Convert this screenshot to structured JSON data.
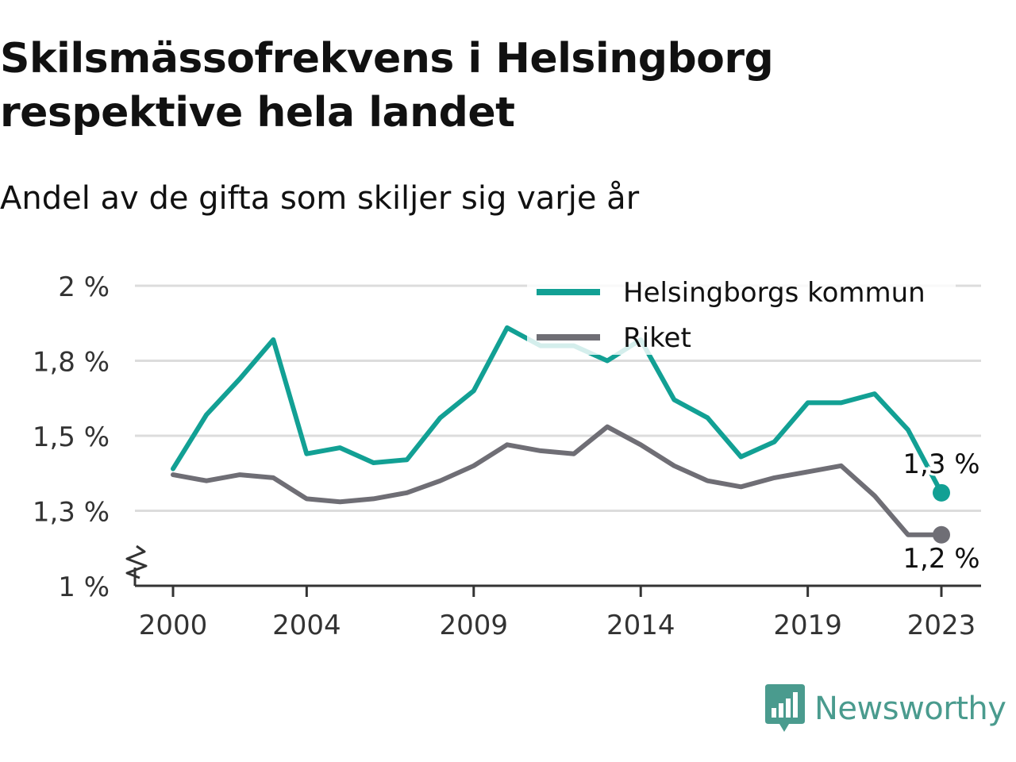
{
  "title": "Skilsmässofrekvens i Helsingborg respektive hela landet",
  "subtitle": "Andel av de gifta som skiljer sig varje år",
  "brand": {
    "name": "Newsworthy",
    "color": "#4a9b8e"
  },
  "chart_data": {
    "type": "line",
    "title": "Skilsmässofrekvens i Helsingborg respektive hela landet",
    "subtitle": "Andel av de gifta som skiljer sig varje år",
    "x": [
      2000,
      2001,
      2002,
      2003,
      2004,
      2005,
      2006,
      2007,
      2008,
      2009,
      2010,
      2011,
      2012,
      2013,
      2014,
      2015,
      2016,
      2017,
      2018,
      2019,
      2020,
      2021,
      2022,
      2023
    ],
    "x_ticks": [
      "2000",
      "2004",
      "2009",
      "2014",
      "2019",
      "2023"
    ],
    "x_tick_values": [
      2000,
      2004,
      2009,
      2014,
      2019,
      2023
    ],
    "y_ticks": [
      "1 %",
      "1,3 %",
      "1,5 %",
      "1,8 %",
      "2 %"
    ],
    "y_tick_values": [
      1.0,
      1.25,
      1.5,
      1.75,
      2.0
    ],
    "ylim": [
      1.0,
      2.0
    ],
    "y_axis_break": true,
    "grid": true,
    "legend_position": "top-right",
    "series": [
      {
        "name": "Helsingborgs kommun",
        "color": "#12a094",
        "values": [
          1.39,
          1.57,
          1.69,
          1.82,
          1.44,
          1.46,
          1.41,
          1.42,
          1.56,
          1.65,
          1.86,
          1.8,
          1.8,
          1.75,
          1.82,
          1.62,
          1.56,
          1.43,
          1.48,
          1.61,
          1.61,
          1.64,
          1.52,
          1.31
        ],
        "end_label": "1,3 %"
      },
      {
        "name": "Riket",
        "color": "#6f6e75",
        "values": [
          1.37,
          1.35,
          1.37,
          1.36,
          1.29,
          1.28,
          1.29,
          1.31,
          1.35,
          1.4,
          1.47,
          1.45,
          1.44,
          1.53,
          1.47,
          1.4,
          1.35,
          1.33,
          1.36,
          1.38,
          1.4,
          1.3,
          1.17,
          1.17
        ],
        "end_label": "1,2 %"
      }
    ]
  }
}
